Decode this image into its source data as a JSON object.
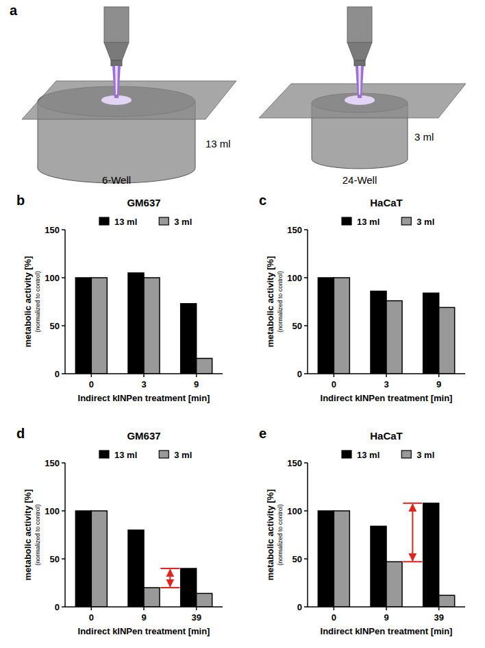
{
  "diagram": {
    "panel": "a",
    "wells": [
      {
        "name": "6-Well",
        "volume": "13 ml"
      },
      {
        "name": "24-Well",
        "volume": "3 ml"
      }
    ]
  },
  "chart_data": [
    {
      "type": "bar",
      "panel": "b",
      "title": "GM637",
      "x_label": "Indirect kINPen treatment [min]",
      "y_label": "metabolic activity [%]",
      "y_sublabel": "(normalized to control)",
      "categories": [
        "0",
        "3",
        "9"
      ],
      "series": [
        {
          "name": "13 ml",
          "color": "#000000",
          "values": [
            100,
            105,
            73
          ]
        },
        {
          "name": "3 ml",
          "color": "#999999",
          "values": [
            100,
            100,
            16
          ]
        }
      ],
      "ylim": [
        0,
        150
      ],
      "yticks": [
        0,
        50,
        100,
        150
      ],
      "grid": false,
      "legend": "top"
    },
    {
      "type": "bar",
      "panel": "c",
      "title": "HaCaT",
      "x_label": "Indirect kINPen treatment [min]",
      "y_label": "metabolic activity [%]",
      "y_sublabel": "(normalized to control)",
      "categories": [
        "0",
        "3",
        "9"
      ],
      "series": [
        {
          "name": "13 ml",
          "color": "#000000",
          "values": [
            100,
            86,
            84
          ]
        },
        {
          "name": "3 ml",
          "color": "#999999",
          "values": [
            100,
            76,
            69
          ]
        }
      ],
      "ylim": [
        0,
        150
      ],
      "yticks": [
        0,
        50,
        100,
        150
      ],
      "grid": false,
      "legend": "top"
    },
    {
      "type": "bar",
      "panel": "d",
      "title": "GM637",
      "x_label": "Indirect kINPen treatment [min]",
      "y_label": "metabolic activity [%]",
      "y_sublabel": "(normalized to control)",
      "categories": [
        "0",
        "9",
        "39"
      ],
      "series": [
        {
          "name": "13 ml",
          "color": "#000000",
          "values": [
            100,
            80,
            40
          ]
        },
        {
          "name": "3 ml",
          "color": "#999999",
          "values": [
            100,
            20,
            14
          ]
        }
      ],
      "arrows": [
        {
          "values": [
            20,
            40
          ],
          "color": "#e3241b"
        }
      ],
      "ylim": [
        0,
        150
      ],
      "yticks": [
        0,
        50,
        100,
        150
      ],
      "grid": false,
      "legend": "top"
    },
    {
      "type": "bar",
      "panel": "e",
      "title": "HaCaT",
      "x_label": "Indirect kINPen treatment [min]",
      "y_label": "metabolic activity [%]",
      "y_sublabel": "(normalized to control)",
      "categories": [
        "0",
        "9",
        "39"
      ],
      "series": [
        {
          "name": "13 ml",
          "color": "#000000",
          "values": [
            100,
            84,
            108
          ]
        },
        {
          "name": "3 ml",
          "color": "#999999",
          "values": [
            100,
            47,
            12
          ]
        }
      ],
      "arrows": [
        {
          "values": [
            47,
            108
          ],
          "color": "#e3241b"
        }
      ],
      "ylim": [
        0,
        150
      ],
      "yticks": [
        0,
        50,
        100,
        150
      ],
      "grid": false,
      "legend": "top"
    }
  ]
}
